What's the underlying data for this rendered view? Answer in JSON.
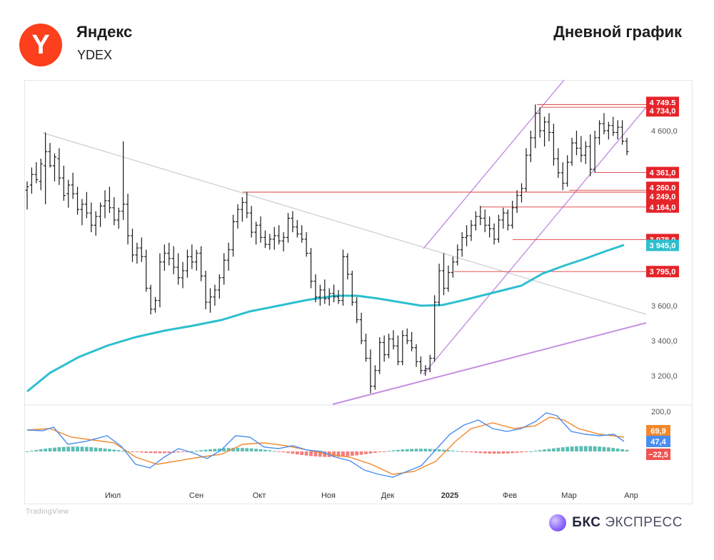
{
  "header": {
    "company_name": "Яндекс",
    "ticker": "YDEX",
    "logo_letter": "Y",
    "chart_title": "Дневной график"
  },
  "footer": {
    "watermark": "TradingView",
    "brand_bold": "БКС",
    "brand_rest": "ЭКСПРЕСС"
  },
  "colors": {
    "ma_line": "#2dbfcf",
    "channel": "#c48ee0",
    "trendline": "#cccccc",
    "level_line": "#e03b3b",
    "price_tag": "#e5242a",
    "bar": "#1a1a1a",
    "macd_line": "#4a8df0",
    "signal_line": "#f2882c",
    "hist_pos": "#26a69a",
    "hist_neg": "#ef5350"
  },
  "chart_data": [
    {
      "type": "candlestick",
      "title": "Дневной график",
      "x_labels": [
        "Июл",
        "Сен",
        "Окт",
        "Ноя",
        "Дек",
        "2025",
        "Фев",
        "Мар",
        "Апр"
      ],
      "y_ticks": [
        3200,
        3400,
        3600,
        4600
      ],
      "y_tick_labels": [
        "3 200,0",
        "3 400,0",
        "3 600,0",
        "4 600,0"
      ],
      "y_range": [
        3080,
        4780
      ],
      "price_levels": [
        {
          "value": 4749.5,
          "label": "4 749,5"
        },
        {
          "value": 4734.0,
          "label": "4 734,0"
        },
        {
          "value": 4361.0,
          "label": "4 361,0"
        },
        {
          "value": 4260.0,
          "label": "4 260,0"
        },
        {
          "value": 4249.0,
          "label": "4 249,0"
        },
        {
          "value": 4164.0,
          "label": "4 164,0"
        },
        {
          "value": 3978.0,
          "label": "3 978,0"
        },
        {
          "value": 3795.0,
          "label": "3 795,0"
        }
      ],
      "ma_value": {
        "value": 3945.0,
        "label": "3 945,0"
      },
      "ohlc": [
        [
          4260,
          4310,
          4150,
          4280
        ],
        [
          4290,
          4390,
          4240,
          4350
        ],
        [
          4350,
          4420,
          4300,
          4320
        ],
        [
          4310,
          4440,
          4260,
          4410
        ],
        [
          4400,
          4590,
          4180,
          4480
        ],
        [
          4480,
          4530,
          4390,
          4400
        ],
        [
          4400,
          4470,
          4310,
          4450
        ],
        [
          4440,
          4500,
          4290,
          4330
        ],
        [
          4330,
          4400,
          4200,
          4230
        ],
        [
          4240,
          4320,
          4160,
          4290
        ],
        [
          4290,
          4360,
          4210,
          4240
        ],
        [
          4240,
          4280,
          4120,
          4150
        ],
        [
          4150,
          4210,
          4060,
          4180
        ],
        [
          4180,
          4250,
          4100,
          4130
        ],
        [
          4130,
          4190,
          4020,
          4060
        ],
        [
          4060,
          4140,
          4000,
          4110
        ],
        [
          4110,
          4190,
          4050,
          4170
        ],
        [
          4170,
          4260,
          4100,
          4200
        ],
        [
          4200,
          4280,
          4130,
          4160
        ],
        [
          4160,
          4220,
          4060,
          4090
        ],
        [
          4090,
          4160,
          4040,
          4140
        ],
        [
          4140,
          4540,
          4090,
          4180
        ],
        [
          4180,
          4240,
          3950,
          4000
        ],
        [
          4000,
          4040,
          3850,
          3890
        ],
        [
          3890,
          3960,
          3840,
          3930
        ],
        [
          3930,
          3990,
          3850,
          3880
        ],
        [
          3880,
          3920,
          3680,
          3700
        ],
        [
          3700,
          3720,
          3550,
          3580
        ],
        [
          3580,
          3650,
          3560,
          3630
        ],
        [
          3630,
          3900,
          3590,
          3850
        ],
        [
          3850,
          3950,
          3800,
          3900
        ],
        [
          3900,
          3960,
          3830,
          3870
        ],
        [
          3870,
          3940,
          3780,
          3820
        ],
        [
          3820,
          3900,
          3720,
          3760
        ],
        [
          3760,
          3850,
          3700,
          3800
        ],
        [
          3800,
          3920,
          3760,
          3880
        ],
        [
          3880,
          3950,
          3810,
          3850
        ],
        [
          3850,
          3920,
          3800,
          3900
        ],
        [
          3900,
          3940,
          3740,
          3770
        ],
        [
          3770,
          3800,
          3580,
          3620
        ],
        [
          3620,
          3700,
          3560,
          3650
        ],
        [
          3650,
          3720,
          3600,
          3690
        ],
        [
          3690,
          3780,
          3640,
          3760
        ],
        [
          3760,
          3900,
          3720,
          3860
        ],
        [
          3860,
          3960,
          3800,
          3920
        ],
        [
          3920,
          4120,
          3880,
          4080
        ],
        [
          4080,
          4180,
          4040,
          4150
        ],
        [
          4150,
          4220,
          4080,
          4190
        ],
        [
          4190,
          4250,
          4100,
          4130
        ],
        [
          4130,
          4170,
          3990,
          4020
        ],
        [
          4020,
          4080,
          3950,
          4060
        ],
        [
          4060,
          4110,
          3960,
          3990
        ],
        [
          3990,
          4030,
          3930,
          3950
        ],
        [
          3950,
          4010,
          3920,
          3980
        ],
        [
          3980,
          4050,
          3920,
          4000
        ],
        [
          4000,
          4060,
          3950,
          3970
        ],
        [
          3970,
          4020,
          3910,
          3990
        ],
        [
          3990,
          4130,
          3960,
          4100
        ],
        [
          4100,
          4140,
          4020,
          4050
        ],
        [
          4050,
          4090,
          3990,
          4010
        ],
        [
          4010,
          4060,
          3960,
          3980
        ],
        [
          3980,
          4020,
          3880,
          3900
        ],
        [
          3900,
          3930,
          3700,
          3740
        ],
        [
          3740,
          3780,
          3620,
          3650
        ],
        [
          3650,
          3720,
          3600,
          3690
        ],
        [
          3690,
          3750,
          3610,
          3640
        ],
        [
          3640,
          3700,
          3600,
          3670
        ],
        [
          3670,
          3720,
          3620,
          3650
        ],
        [
          3650,
          3690,
          3610,
          3630
        ],
        [
          3630,
          3920,
          3600,
          3880
        ],
        [
          3880,
          3900,
          3750,
          3780
        ],
        [
          3780,
          3800,
          3600,
          3620
        ],
        [
          3620,
          3650,
          3500,
          3520
        ],
        [
          3520,
          3560,
          3380,
          3400
        ],
        [
          3400,
          3440,
          3280,
          3300
        ],
        [
          3300,
          3350,
          3100,
          3140
        ],
        [
          3140,
          3260,
          3120,
          3230
        ],
        [
          3230,
          3420,
          3210,
          3390
        ],
        [
          3390,
          3430,
          3280,
          3320
        ],
        [
          3320,
          3440,
          3300,
          3410
        ],
        [
          3410,
          3460,
          3350,
          3370
        ],
        [
          3370,
          3430,
          3260,
          3280
        ],
        [
          3280,
          3460,
          3260,
          3430
        ],
        [
          3430,
          3470,
          3380,
          3400
        ],
        [
          3400,
          3450,
          3340,
          3360
        ],
        [
          3360,
          3380,
          3250,
          3280
        ],
        [
          3280,
          3310,
          3210,
          3230
        ],
        [
          3230,
          3260,
          3200,
          3240
        ],
        [
          3240,
          3320,
          3220,
          3300
        ],
        [
          3300,
          3660,
          3280,
          3620
        ],
        [
          3620,
          3840,
          3600,
          3800
        ],
        [
          3800,
          3900,
          3660,
          3700
        ],
        [
          3700,
          3830,
          3680,
          3790
        ],
        [
          3790,
          3880,
          3760,
          3850
        ],
        [
          3850,
          3950,
          3830,
          3920
        ],
        [
          3920,
          4020,
          3880,
          3990
        ],
        [
          3990,
          4060,
          3940,
          4000
        ],
        [
          4000,
          4090,
          3970,
          4060
        ],
        [
          4060,
          4140,
          4030,
          4110
        ],
        [
          4110,
          4170,
          4060,
          4100
        ],
        [
          4100,
          4150,
          4020,
          4060
        ],
        [
          4060,
          4110,
          3990,
          4040
        ],
        [
          4040,
          4070,
          3950,
          3980
        ],
        [
          3980,
          4120,
          3960,
          4090
        ],
        [
          4090,
          4160,
          4040,
          4130
        ],
        [
          4130,
          4150,
          4030,
          4060
        ],
        [
          4060,
          4200,
          4040,
          4160
        ],
        [
          4160,
          4260,
          4130,
          4230
        ],
        [
          4230,
          4300,
          4190,
          4270
        ],
        [
          4270,
          4500,
          4250,
          4460
        ],
        [
          4460,
          4600,
          4420,
          4560
        ],
        [
          4560,
          4750,
          4500,
          4700
        ],
        [
          4700,
          4734,
          4560,
          4600
        ],
        [
          4600,
          4680,
          4510,
          4650
        ],
        [
          4650,
          4700,
          4540,
          4590
        ],
        [
          4590,
          4640,
          4400,
          4440
        ],
        [
          4440,
          4500,
          4330,
          4360
        ],
        [
          4360,
          4420,
          4260,
          4300
        ],
        [
          4300,
          4460,
          4280,
          4420
        ],
        [
          4420,
          4560,
          4400,
          4530
        ],
        [
          4530,
          4600,
          4460,
          4500
        ],
        [
          4500,
          4570,
          4420,
          4460
        ],
        [
          4460,
          4540,
          4410,
          4510
        ],
        [
          4510,
          4580,
          4340,
          4380
        ],
        [
          4380,
          4600,
          4360,
          4560
        ],
        [
          4560,
          4660,
          4520,
          4640
        ],
        [
          4640,
          4700,
          4580,
          4600
        ],
        [
          4600,
          4650,
          4550,
          4630
        ],
        [
          4630,
          4680,
          4570,
          4590
        ],
        [
          4590,
          4660,
          4550,
          4620
        ],
        [
          4620,
          4660,
          4520,
          4540
        ],
        [
          4540,
          4560,
          4460,
          4480
        ]
      ]
    },
    {
      "type": "macd",
      "y_ticks": [
        200
      ],
      "y_tick_labels": [
        "200,0"
      ],
      "y_range": [
        -160,
        220
      ],
      "value_labels": [
        {
          "name": "signal",
          "value": 69.9,
          "label": "69,9"
        },
        {
          "name": "macd",
          "value": 47.4,
          "label": "47,4"
        },
        {
          "name": "histogram",
          "value": -22.5,
          "label": "−22,5"
        }
      ]
    }
  ]
}
